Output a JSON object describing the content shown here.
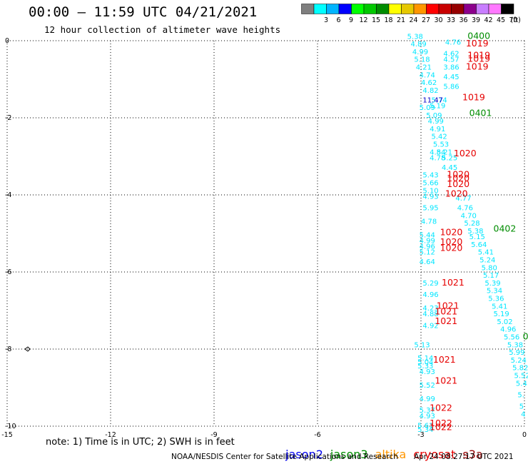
{
  "header": {
    "title": "00:00 – 11:59 UTC 04/21/2021",
    "subtitle": "12 hour collection of altimeter wave heights"
  },
  "scale": {
    "unit": "(ft)",
    "bins": [
      {
        "label": "",
        "color": "#7f7f7f"
      },
      {
        "label": "3",
        "color": "#00ffff"
      },
      {
        "label": "6",
        "color": "#00b4ff"
      },
      {
        "label": "9",
        "color": "#0000ff"
      },
      {
        "label": "12",
        "color": "#00ff00"
      },
      {
        "label": "15",
        "color": "#00c800"
      },
      {
        "label": "18",
        "color": "#008c00"
      },
      {
        "label": "21",
        "color": "#ffff00"
      },
      {
        "label": "24",
        "color": "#e6c800"
      },
      {
        "label": "27",
        "color": "#ff9600"
      },
      {
        "label": "30",
        "color": "#ff0000"
      },
      {
        "label": "33",
        "color": "#c80000"
      },
      {
        "label": "36",
        "color": "#960000"
      },
      {
        "label": "39",
        "color": "#8c008c"
      },
      {
        "label": "42",
        "color": "#c87dff"
      },
      {
        "label": "45",
        "color": "#ff78ff"
      },
      {
        "label": "70",
        "color": "#000000"
      }
    ]
  },
  "footer": {
    "note": "note: 1) Time is in UTC; 2) SWH is in feet",
    "credit": "NOAA/NESDIS Center for Satellite Applications and Research",
    "timestamp": "Apr 24 08:27:17 UTC 2021"
  },
  "satellites": [
    {
      "name": "jason2",
      "color": "#0000ee"
    },
    {
      "name": "jason3",
      "color": "#008c00"
    },
    {
      "name": "altika",
      "color": "#ff9600"
    },
    {
      "name": "cryosat",
      "color": "#e60000"
    },
    {
      "name": "s3a",
      "color": "#960000"
    }
  ],
  "chart_data": {
    "type": "scatter",
    "xlim": [
      -15,
      0
    ],
    "ylim": [
      -10,
      0
    ],
    "x_ticks": [
      -15,
      -12,
      -9,
      -6,
      -3,
      0
    ],
    "y_ticks": [
      0,
      -2,
      -4,
      -6,
      -8,
      -10
    ],
    "grid": true,
    "swh_labels": [
      {
        "x": -3.4,
        "y": 0.05,
        "text": "5.38",
        "color": "#00e6ff"
      },
      {
        "x": -3.3,
        "y": -0.15,
        "text": "4.89",
        "color": "#00e6ff"
      },
      {
        "x": -3.25,
        "y": -0.35,
        "text": "4.99",
        "color": "#00e6ff"
      },
      {
        "x": -3.2,
        "y": -0.55,
        "text": "5.18",
        "color": "#00e6ff"
      },
      {
        "x": -3.15,
        "y": -0.75,
        "text": "4.21",
        "color": "#00e6ff"
      },
      {
        "x": -3.05,
        "y": -0.95,
        "text": "4.74",
        "color": "#00e6ff"
      },
      {
        "x": -3.0,
        "y": -1.15,
        "text": "4.62",
        "color": "#00e6ff"
      },
      {
        "x": -2.95,
        "y": -1.35,
        "text": "4.82",
        "color": "#00e6ff"
      },
      {
        "x": -2.3,
        "y": -0.1,
        "text": "4.76",
        "color": "#00e6ff"
      },
      {
        "x": -2.35,
        "y": -0.4,
        "text": "4.62",
        "color": "#00e6ff"
      },
      {
        "x": -2.35,
        "y": -0.55,
        "text": "4.57",
        "color": "#00e6ff"
      },
      {
        "x": -2.35,
        "y": -0.75,
        "text": "3.86",
        "color": "#00e6ff"
      },
      {
        "x": -2.35,
        "y": -1.0,
        "text": "4.45",
        "color": "#00e6ff"
      },
      {
        "x": -2.35,
        "y": -1.25,
        "text": "5.86",
        "color": "#00e6ff"
      },
      {
        "x": -2.7,
        "y": -1.6,
        "text": "5.74",
        "color": "#00e6ff"
      },
      {
        "x": -2.75,
        "y": -1.75,
        "text": "5.19",
        "color": "#00e6ff"
      },
      {
        "x": -3.05,
        "y": -1.8,
        "text": "5.09",
        "color": "#00e6ff"
      },
      {
        "x": -2.85,
        "y": -2.0,
        "text": "5.09",
        "color": "#00e6ff"
      },
      {
        "x": -2.8,
        "y": -2.15,
        "text": "4.99",
        "color": "#00e6ff"
      },
      {
        "x": -2.75,
        "y": -2.35,
        "text": "4.91",
        "color": "#00e6ff"
      },
      {
        "x": -2.7,
        "y": -2.55,
        "text": "5.42",
        "color": "#00e6ff"
      },
      {
        "x": -2.65,
        "y": -2.75,
        "text": "5.53",
        "color": "#00e6ff"
      },
      {
        "x": -2.75,
        "y": -2.95,
        "text": "4.84",
        "color": "#00e6ff"
      },
      {
        "x": -2.55,
        "y": -2.95,
        "text": "5.21",
        "color": "#00e6ff"
      },
      {
        "x": -2.75,
        "y": -3.1,
        "text": "4.78",
        "color": "#00e6ff"
      },
      {
        "x": -2.4,
        "y": -3.1,
        "text": "5.25",
        "color": "#00e6ff"
      },
      {
        "x": -2.4,
        "y": -3.35,
        "text": "4.45",
        "color": "#00e6ff"
      },
      {
        "x": -2.95,
        "y": -3.55,
        "text": "5.43",
        "color": "#00e6ff"
      },
      {
        "x": -2.95,
        "y": -3.75,
        "text": "5.66",
        "color": "#00e6ff"
      },
      {
        "x": -2.95,
        "y": -3.95,
        "text": "5.10",
        "color": "#00e6ff"
      },
      {
        "x": -2.95,
        "y": -4.1,
        "text": "4.93",
        "color": "#00e6ff"
      },
      {
        "x": -2.95,
        "y": -4.4,
        "text": "5.95",
        "color": "#00e6ff"
      },
      {
        "x": -2.0,
        "y": -4.15,
        "text": "4.77",
        "color": "#00e6ff"
      },
      {
        "x": -1.95,
        "y": -4.4,
        "text": "4.76",
        "color": "#00e6ff"
      },
      {
        "x": -1.85,
        "y": -4.6,
        "text": "4.70",
        "color": "#00e6ff"
      },
      {
        "x": -1.75,
        "y": -4.8,
        "text": "5.28",
        "color": "#00e6ff"
      },
      {
        "x": -1.65,
        "y": -5.0,
        "text": "5.38",
        "color": "#00e6ff"
      },
      {
        "x": -1.6,
        "y": -5.15,
        "text": "5.15",
        "color": "#00e6ff"
      },
      {
        "x": -1.55,
        "y": -5.35,
        "text": "5.64",
        "color": "#00e6ff"
      },
      {
        "x": -1.35,
        "y": -5.55,
        "text": "5.41",
        "color": "#00e6ff"
      },
      {
        "x": -1.3,
        "y": -5.75,
        "text": "5.24",
        "color": "#00e6ff"
      },
      {
        "x": -1.25,
        "y": -5.95,
        "text": "5.80",
        "color": "#00e6ff"
      },
      {
        "x": -1.2,
        "y": -6.15,
        "text": "5.17",
        "color": "#00e6ff"
      },
      {
        "x": -1.15,
        "y": -6.35,
        "text": "5.39",
        "color": "#00e6ff"
      },
      {
        "x": -1.1,
        "y": -6.55,
        "text": "5.34",
        "color": "#00e6ff"
      },
      {
        "x": -1.05,
        "y": -6.75,
        "text": "5.36",
        "color": "#00e6ff"
      },
      {
        "x": -0.95,
        "y": -6.95,
        "text": "5.41",
        "color": "#00e6ff"
      },
      {
        "x": -0.9,
        "y": -7.15,
        "text": "5.19",
        "color": "#00e6ff"
      },
      {
        "x": -0.8,
        "y": -7.35,
        "text": "5.02",
        "color": "#00e6ff"
      },
      {
        "x": -0.7,
        "y": -7.55,
        "text": "4.96",
        "color": "#00e6ff"
      },
      {
        "x": -0.6,
        "y": -7.75,
        "text": "5.56",
        "color": "#00e6ff"
      },
      {
        "x": -0.5,
        "y": -7.95,
        "text": "5.38",
        "color": "#00e6ff"
      },
      {
        "x": -0.45,
        "y": -8.15,
        "text": "5.99",
        "color": "#00e6ff"
      },
      {
        "x": -0.4,
        "y": -8.35,
        "text": "5.24",
        "color": "#00e6ff"
      },
      {
        "x": -0.35,
        "y": -8.55,
        "text": "5.82",
        "color": "#00e6ff"
      },
      {
        "x": -0.3,
        "y": -8.75,
        "text": "5.52",
        "color": "#00e6ff"
      },
      {
        "x": -0.25,
        "y": -8.95,
        "text": "5.4",
        "color": "#00e6ff"
      },
      {
        "x": -0.2,
        "y": -9.25,
        "text": "5.",
        "color": "#00e6ff"
      },
      {
        "x": -0.15,
        "y": -9.55,
        "text": "5",
        "color": "#00e6ff"
      },
      {
        "x": -0.1,
        "y": -9.75,
        "text": "4",
        "color": "#00e6ff"
      },
      {
        "x": -3.0,
        "y": -4.75,
        "text": "4.78",
        "color": "#00e6ff"
      },
      {
        "x": -3.05,
        "y": -5.1,
        "text": "5.44",
        "color": "#00e6ff"
      },
      {
        "x": -3.05,
        "y": -5.25,
        "text": "4.99",
        "color": "#00e6ff"
      },
      {
        "x": -3.05,
        "y": -5.4,
        "text": "4.96",
        "color": "#00e6ff"
      },
      {
        "x": -3.05,
        "y": -5.55,
        "text": "5.12",
        "color": "#00e6ff"
      },
      {
        "x": -3.05,
        "y": -5.8,
        "text": "4.64",
        "color": "#00e6ff"
      },
      {
        "x": -2.95,
        "y": -6.35,
        "text": "5.29",
        "color": "#00e6ff"
      },
      {
        "x": -2.95,
        "y": -6.65,
        "text": "4.96",
        "color": "#00e6ff"
      },
      {
        "x": -2.95,
        "y": -7.0,
        "text": "4.23",
        "color": "#00e6ff"
      },
      {
        "x": -2.95,
        "y": -7.15,
        "text": "4.88",
        "color": "#00e6ff"
      },
      {
        "x": -2.95,
        "y": -7.45,
        "text": "4.92",
        "color": "#00e6ff"
      },
      {
        "x": -3.2,
        "y": -7.95,
        "text": "5.13",
        "color": "#00e6ff"
      },
      {
        "x": -3.1,
        "y": -8.3,
        "text": "5.14",
        "color": "#00e6ff"
      },
      {
        "x": -3.1,
        "y": -8.4,
        "text": "5.04",
        "color": "#00e6ff"
      },
      {
        "x": -3.1,
        "y": -8.5,
        "text": "5.33",
        "color": "#00e6ff"
      },
      {
        "x": -3.05,
        "y": -8.65,
        "text": "4.93",
        "color": "#00e6ff"
      },
      {
        "x": -3.05,
        "y": -9.0,
        "text": "5.52",
        "color": "#00e6ff"
      },
      {
        "x": -3.05,
        "y": -9.35,
        "text": "4.99",
        "color": "#00e6ff"
      },
      {
        "x": -3.05,
        "y": -9.65,
        "text": "5.37",
        "color": "#00e6ff"
      },
      {
        "x": -3.05,
        "y": -9.8,
        "text": "4.93",
        "color": "#00e6ff"
      },
      {
        "x": -3.1,
        "y": -10.05,
        "text": "5.61",
        "color": "#00e6ff"
      },
      {
        "x": -3.1,
        "y": -10.15,
        "text": "5.34",
        "color": "#00e6ff"
      },
      {
        "x": -2.95,
        "y": -1.6,
        "text": "11.47",
        "color": "#0000c8"
      }
    ],
    "hour_labels": [
      {
        "x": -1.65,
        "y": 0.05,
        "text": "0400",
        "color": "#008c00"
      },
      {
        "x": -1.6,
        "y": -1.95,
        "text": "0401",
        "color": "#008c00"
      },
      {
        "x": -0.9,
        "y": -4.95,
        "text": "0402",
        "color": "#008c00"
      },
      {
        "x": -0.05,
        "y": -7.75,
        "text": "0",
        "color": "#008c00"
      },
      {
        "x": -1.7,
        "y": -0.15,
        "text": "1019",
        "color": "#e60000"
      },
      {
        "x": -1.65,
        "y": -0.45,
        "text": "1019",
        "color": "#e60000"
      },
      {
        "x": -1.65,
        "y": -0.55,
        "text": "1019",
        "color": "#e60000"
      },
      {
        "x": -1.7,
        "y": -0.75,
        "text": "1019",
        "color": "#e60000"
      },
      {
        "x": -1.8,
        "y": -1.55,
        "text": "1019",
        "color": "#e60000"
      },
      {
        "x": -2.05,
        "y": -3.0,
        "text": "1020",
        "color": "#e60000"
      },
      {
        "x": -2.25,
        "y": -3.55,
        "text": "1020",
        "color": "#e60000"
      },
      {
        "x": -2.25,
        "y": -3.65,
        "text": "1020",
        "color": "#e60000"
      },
      {
        "x": -2.25,
        "y": -3.8,
        "text": "1020",
        "color": "#e60000"
      },
      {
        "x": -2.3,
        "y": -4.05,
        "text": "1020",
        "color": "#e60000"
      },
      {
        "x": -2.45,
        "y": -5.05,
        "text": "1020",
        "color": "#e60000"
      },
      {
        "x": -2.45,
        "y": -5.3,
        "text": "1020",
        "color": "#e60000"
      },
      {
        "x": -2.45,
        "y": -5.45,
        "text": "1020",
        "color": "#e60000"
      },
      {
        "x": -2.4,
        "y": -6.35,
        "text": "1021",
        "color": "#e60000"
      },
      {
        "x": -2.55,
        "y": -6.95,
        "text": "1021",
        "color": "#e60000"
      },
      {
        "x": -2.6,
        "y": -7.1,
        "text": "1021",
        "color": "#e60000"
      },
      {
        "x": -2.6,
        "y": -7.35,
        "text": "1021",
        "color": "#e60000"
      },
      {
        "x": -2.65,
        "y": -8.35,
        "text": "1021",
        "color": "#e60000"
      },
      {
        "x": -2.6,
        "y": -8.9,
        "text": "1021",
        "color": "#e60000"
      },
      {
        "x": -2.75,
        "y": -9.6,
        "text": "1022",
        "color": "#e60000"
      },
      {
        "x": -2.75,
        "y": -10.0,
        "text": "1022",
        "color": "#e60000"
      },
      {
        "x": -2.75,
        "y": -10.1,
        "text": "1022",
        "color": "#e60000"
      }
    ]
  }
}
